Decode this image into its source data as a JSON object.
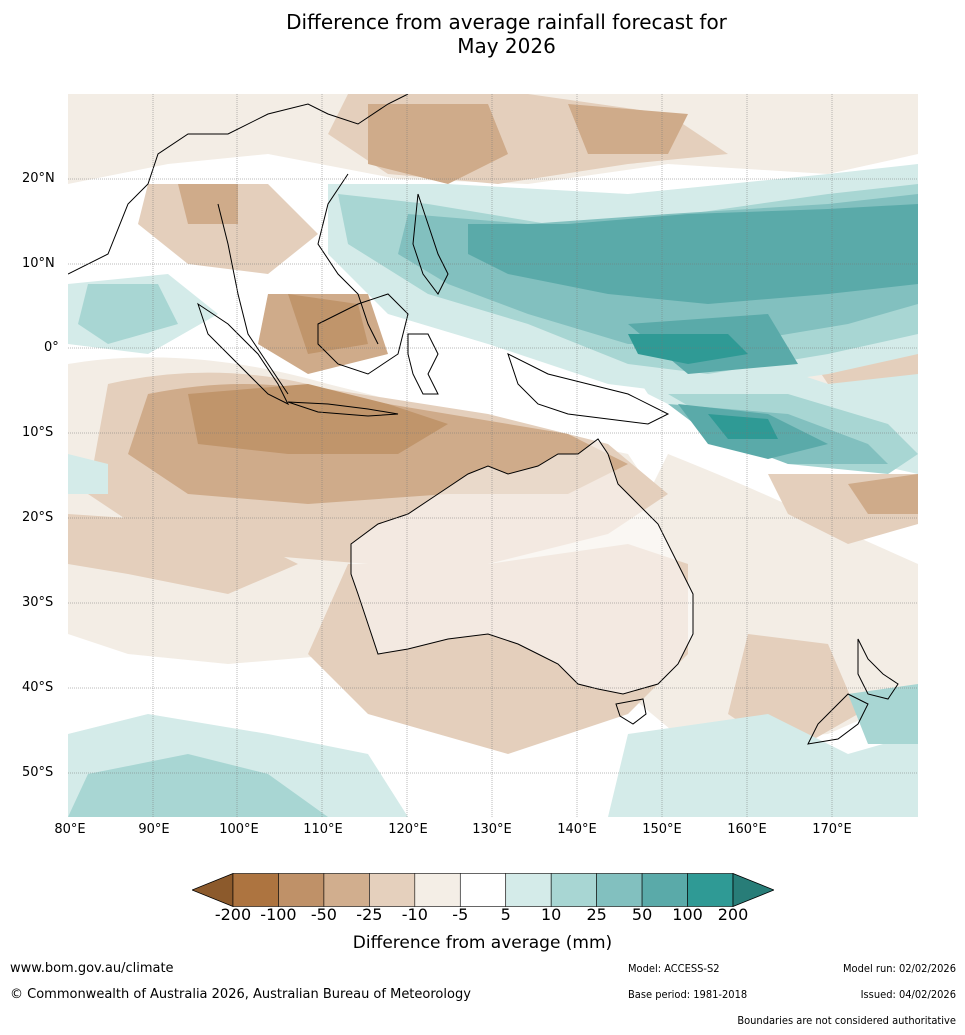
{
  "title": {
    "line1": "Difference from average rainfall forecast for",
    "line2": "May 2026"
  },
  "map": {
    "lat_labels": [
      "20°N",
      "10°N",
      "0°",
      "10°S",
      "20°S",
      "30°S",
      "40°S",
      "50°S"
    ],
    "lon_labels": [
      "80°E",
      "90°E",
      "100°E",
      "110°E",
      "120°E",
      "130°E",
      "140°E",
      "150°E",
      "160°E",
      "170°E"
    ]
  },
  "colorbar": {
    "title": "Difference from average (mm)",
    "ticks": [
      "-200",
      "-100",
      "-50",
      "-25",
      "-10",
      "-5",
      "5",
      "10",
      "25",
      "50",
      "100",
      "200"
    ],
    "colors": [
      "#8c5a2c",
      "#ad7440",
      "#bf9168",
      "#d1ae8e",
      "#e5d0bd",
      "#f4eee6",
      "#ffffff",
      "#d4ebe9",
      "#a8d6d3",
      "#82c0bf",
      "#5aaaa9",
      "#2f9a95",
      "#287d78"
    ]
  },
  "footer": {
    "url": "www.bom.gov.au/climate",
    "copyright": "© Commonwealth of Australia 2026, Australian Bureau of Meteorology",
    "model": "Model: ACCESS-S2",
    "base_period": "Base period: 1981-2018",
    "model_run": "Model run: 02/02/2026",
    "issued": "Issued: 04/02/2026",
    "disclaimer": "Boundaries are not considered authoritative"
  }
}
